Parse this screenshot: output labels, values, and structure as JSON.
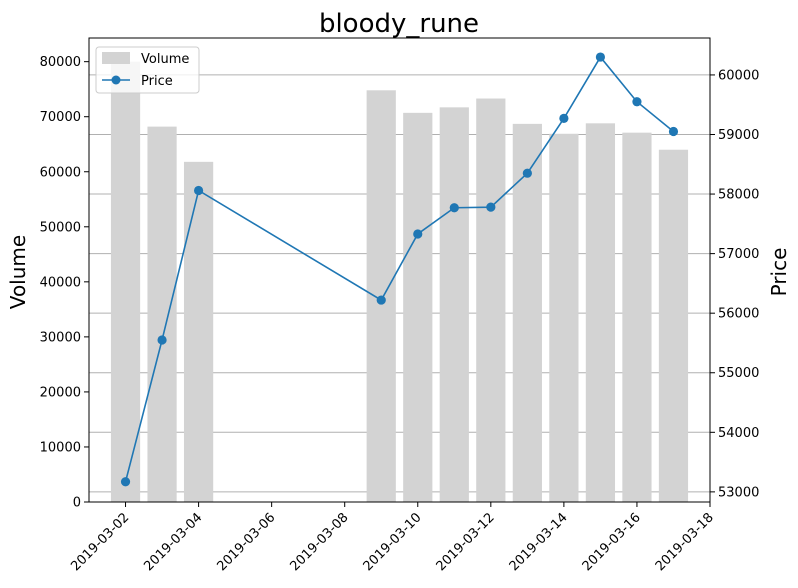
{
  "chart_data": {
    "type": "bar",
    "title": "bloody_rune",
    "xlabel": "",
    "ylabel_left": "Volume",
    "ylabel_right": "Price",
    "x_ticks": [
      "2019-03-02",
      "2019-03-04",
      "2019-03-06",
      "2019-03-08",
      "2019-03-10",
      "2019-03-12",
      "2019-03-14",
      "2019-03-16",
      "2019-03-18"
    ],
    "x_range": [
      "2019-03-01",
      "2019-03-18"
    ],
    "y_left_ticks": [
      0,
      10000,
      20000,
      30000,
      40000,
      50000,
      60000,
      70000,
      80000
    ],
    "y_left_range": [
      0,
      84300
    ],
    "y_right_ticks": [
      53000,
      54000,
      55000,
      56000,
      57000,
      58000,
      59000,
      60000
    ],
    "y_right_range": [
      52830,
      60620
    ],
    "grid": "horizontal",
    "legend": "top-left",
    "legend_entries": [
      "Volume",
      "Price"
    ],
    "colors": {
      "volume": "#d3d3d3",
      "price": "#1f77b4"
    },
    "volume_series": [
      {
        "x": "2019-03-02",
        "y": 80000
      },
      {
        "x": "2019-03-03",
        "y": 68200
      },
      {
        "x": "2019-03-04",
        "y": 61800
      },
      {
        "x": "2019-03-09",
        "y": 74800
      },
      {
        "x": "2019-03-10",
        "y": 70700
      },
      {
        "x": "2019-03-11",
        "y": 71700
      },
      {
        "x": "2019-03-12",
        "y": 73300
      },
      {
        "x": "2019-03-13",
        "y": 68700
      },
      {
        "x": "2019-03-14",
        "y": 66900
      },
      {
        "x": "2019-03-15",
        "y": 68800
      },
      {
        "x": "2019-03-16",
        "y": 67100
      },
      {
        "x": "2019-03-17",
        "y": 64000
      }
    ],
    "price_series": [
      {
        "x": "2019-03-02",
        "y": 53170
      },
      {
        "x": "2019-03-03",
        "y": 55550
      },
      {
        "x": "2019-03-04",
        "y": 58060
      },
      {
        "x": "2019-03-09",
        "y": 56220
      },
      {
        "x": "2019-03-10",
        "y": 57330
      },
      {
        "x": "2019-03-11",
        "y": 57770
      },
      {
        "x": "2019-03-12",
        "y": 57780
      },
      {
        "x": "2019-03-13",
        "y": 58350
      },
      {
        "x": "2019-03-14",
        "y": 59270
      },
      {
        "x": "2019-03-15",
        "y": 60300
      },
      {
        "x": "2019-03-16",
        "y": 59550
      },
      {
        "x": "2019-03-17",
        "y": 59050
      }
    ]
  }
}
